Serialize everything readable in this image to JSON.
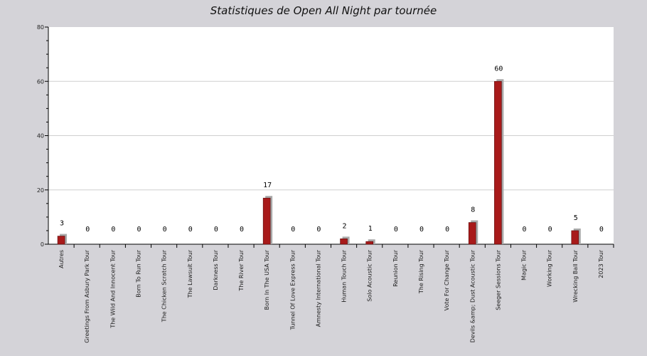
{
  "chart_data": {
    "type": "bar",
    "title": "Statistiques de Open All Night par tournée",
    "xlabel": "",
    "ylabel": "",
    "ylim": [
      0,
      80
    ],
    "yticks": [
      0,
      20,
      40,
      60,
      80
    ],
    "grid": true,
    "categories": [
      "Autres",
      "Greetings From Asbury Park Tour",
      "The Wild And Innocent Tour",
      "Born To Run Tour",
      "The Chicken Scratch Tour",
      "The Lawsuit Tour",
      "Darkness Tour",
      "The River Tour",
      "Born In The USA Tour",
      "Tunnel Of Love Express Tour",
      "Amnesty International Tour",
      "Human Touch Tour",
      "Solo Acoustic Tour",
      "Reunion Tour",
      "The Rising Tour",
      "Vote For Change Tour",
      "Devils &amp; Dust Acoustic Tour",
      "Seeger Sessions Tour",
      "Magic Tour",
      "Working Tour",
      "Wrecking Ball Tour",
      "2023 Tour"
    ],
    "values": [
      3,
      0,
      0,
      0,
      0,
      0,
      0,
      0,
      17,
      0,
      0,
      2,
      1,
      0,
      0,
      0,
      8,
      60,
      0,
      0,
      5,
      0
    ],
    "colors": {
      "bar": "#a81a1a",
      "bar_border": "#5a0a0a",
      "shadow": "#a9a9a9",
      "plot_bg": "#ffffff",
      "page_bg": "#d4d3d8",
      "grid": "#cfcfcf"
    }
  }
}
